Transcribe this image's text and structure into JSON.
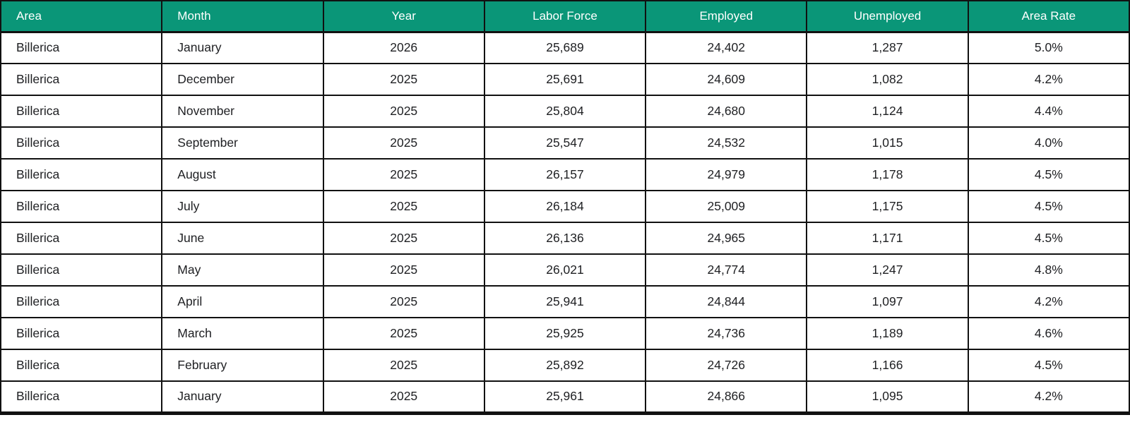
{
  "colors": {
    "header_bg": "#0A9678",
    "header_text": "#FFFFFF",
    "body_text": "#202124",
    "border": "#111111",
    "row_bg": "#FFFFFF"
  },
  "chart_data": {
    "type": "table",
    "title": "",
    "columns": [
      {
        "key": "area",
        "label": "Area",
        "align": "left"
      },
      {
        "key": "month",
        "label": "Month",
        "align": "left"
      },
      {
        "key": "year",
        "label": "Year",
        "align": "center"
      },
      {
        "key": "labor_force",
        "label": "Labor Force",
        "align": "center"
      },
      {
        "key": "employed",
        "label": "Employed",
        "align": "center"
      },
      {
        "key": "unemployed",
        "label": "Unemployed",
        "align": "center"
      },
      {
        "key": "area_rate",
        "label": "Area Rate",
        "align": "center"
      }
    ],
    "rows": [
      [
        "Billerica",
        "January",
        "2026",
        "25,689",
        "24,402",
        "1,287",
        "5.0%"
      ],
      [
        "Billerica",
        "December",
        "2025",
        "25,691",
        "24,609",
        "1,082",
        "4.2%"
      ],
      [
        "Billerica",
        "November",
        "2025",
        "25,804",
        "24,680",
        "1,124",
        "4.4%"
      ],
      [
        "Billerica",
        "September",
        "2025",
        "25,547",
        "24,532",
        "1,015",
        "4.0%"
      ],
      [
        "Billerica",
        "August",
        "2025",
        "26,157",
        "24,979",
        "1,178",
        "4.5%"
      ],
      [
        "Billerica",
        "July",
        "2025",
        "26,184",
        "25,009",
        "1,175",
        "4.5%"
      ],
      [
        "Billerica",
        "June",
        "2025",
        "26,136",
        "24,965",
        "1,171",
        "4.5%"
      ],
      [
        "Billerica",
        "May",
        "2025",
        "26,021",
        "24,774",
        "1,247",
        "4.8%"
      ],
      [
        "Billerica",
        "April",
        "2025",
        "25,941",
        "24,844",
        "1,097",
        "4.2%"
      ],
      [
        "Billerica",
        "March",
        "2025",
        "25,925",
        "24,736",
        "1,189",
        "4.6%"
      ],
      [
        "Billerica",
        "February",
        "2025",
        "25,892",
        "24,726",
        "1,166",
        "4.5%"
      ],
      [
        "Billerica",
        "January",
        "2025",
        "25,961",
        "24,866",
        "1,095",
        "4.2%"
      ]
    ]
  }
}
